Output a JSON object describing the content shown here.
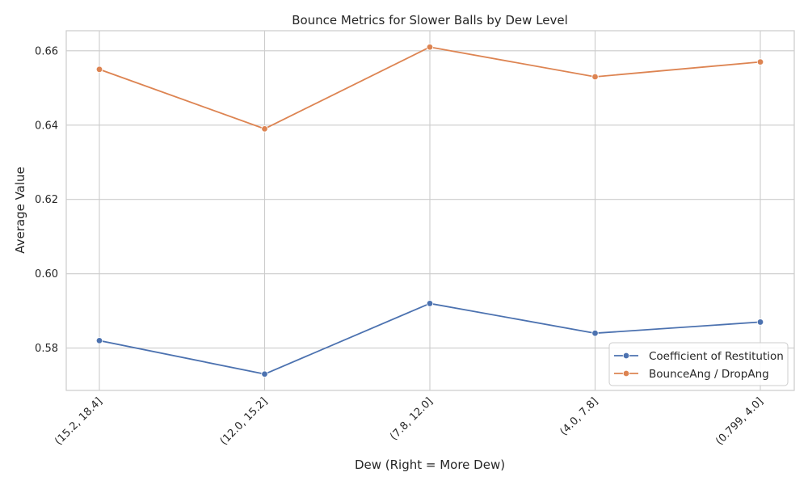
{
  "chart_data": {
    "type": "line",
    "title": "Bounce Metrics for Slower Balls by Dew Level",
    "xlabel": "Dew (Right = More Dew)",
    "ylabel": "Average Value",
    "categories": [
      "(15.2, 18.4]",
      "(12.0, 15.2]",
      "(7.8, 12.0]",
      "(4.0, 7.8]",
      "(0.799, 4.0]"
    ],
    "series": [
      {
        "name": "Coefficient of Restitution",
        "values": [
          0.582,
          0.573,
          0.592,
          0.584,
          0.587
        ],
        "color": "#4c72b0"
      },
      {
        "name": "BounceAng / DropAng",
        "values": [
          0.655,
          0.639,
          0.661,
          0.653,
          0.657
        ],
        "color": "#dd8452"
      }
    ],
    "ylim": [
      0.5686,
      0.6654
    ],
    "yticks": [
      0.58,
      0.6,
      0.62,
      0.64,
      0.66
    ],
    "grid": true,
    "legend_position": "bottom-right",
    "x_tick_rotation_deg": 45
  }
}
